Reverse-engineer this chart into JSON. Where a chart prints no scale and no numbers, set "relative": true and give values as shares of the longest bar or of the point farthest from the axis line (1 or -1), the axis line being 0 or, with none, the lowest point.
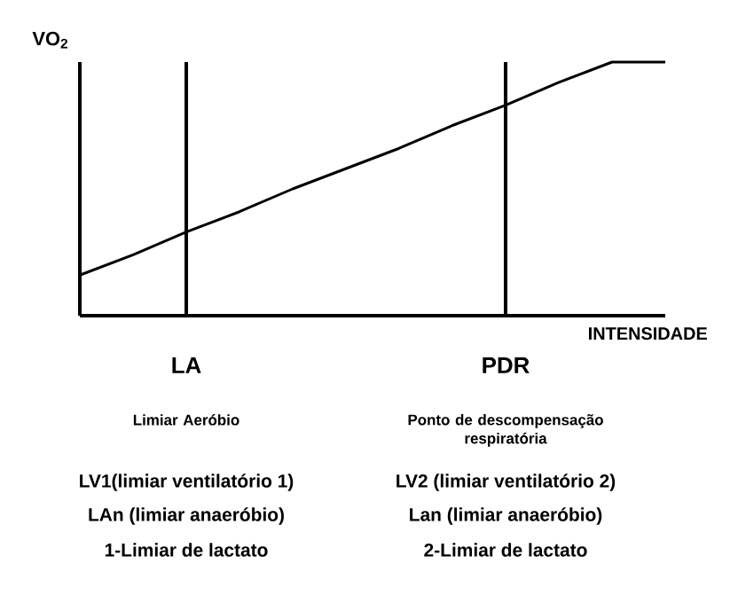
{
  "chart_data": {
    "type": "line",
    "xlabel": "INTENSIDADE",
    "ylabel": "VO$_{2}$",
    "relative": true,
    "color": "#000000",
    "marker": "none",
    "categories": [
      null,
      null,
      "LA",
      null,
      null,
      null,
      null,
      null,
      "PDR",
      null,
      null,
      null
    ],
    "values": [
      0.16,
      0.24,
      0.33,
      0.41,
      0.5,
      0.58,
      0.66,
      0.75,
      0.83,
      0.92,
      1,
      1
    ],
    "ref_lines": [
      {
        "axis": "x",
        "value": "LA"
      },
      {
        "axis": "x",
        "value": "PDR"
      }
    ],
    "annotations": [
      "Limiar Aeróbio",
      "LV1(limiar ventilatório 1)",
      "LAn (limiar anaeróbio)",
      "1-Limiar de lactato",
      "Ponto de descompensação respiratória",
      "LV2 (limiar ventilatório 2)",
      "Lan (limiar anaeróbio)",
      "2-Limiar de lactato"
    ]
  }
}
